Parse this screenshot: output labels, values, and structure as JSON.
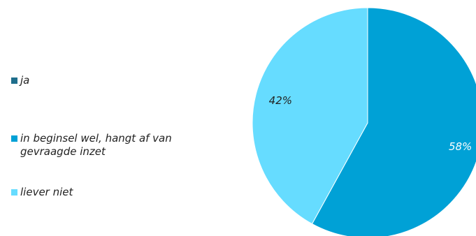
{
  "chart_data": {
    "type": "pie",
    "categories": [
      "ja",
      "in beginsel wel, hangt af van gevraagde inzet",
      "liever niet"
    ],
    "values": [
      0,
      58,
      42
    ],
    "value_labels": [
      "",
      "58%",
      "42%"
    ],
    "colors": [
      "#1f6e8c",
      "#00a1d6",
      "#66dcff"
    ],
    "legend": "left"
  }
}
